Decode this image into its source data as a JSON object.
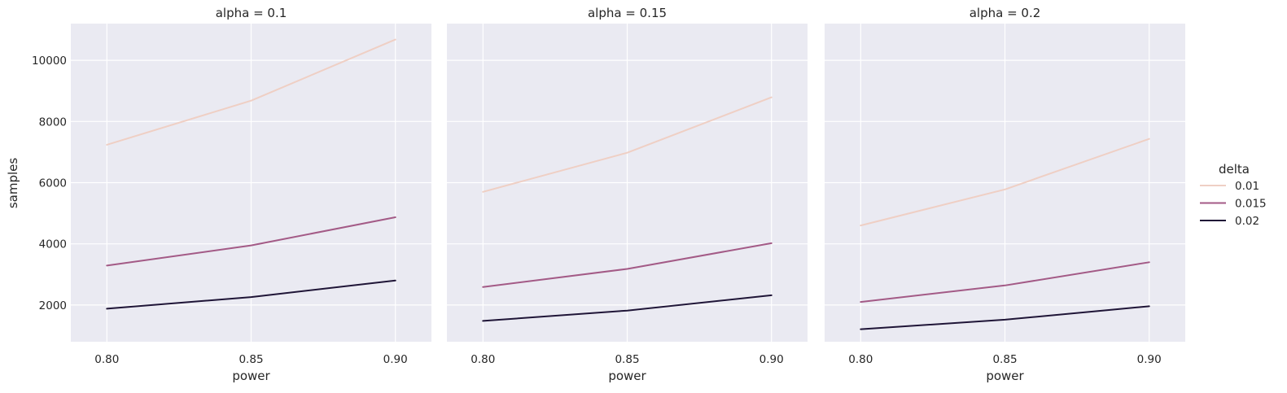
{
  "chart_data": {
    "type": "line",
    "facet_variable": "alpha",
    "facets": [
      {
        "title": "alpha = 0.1",
        "series": [
          {
            "name": "0.01",
            "values": [
              7240,
              8680,
              10680
            ]
          },
          {
            "name": "0.015",
            "values": [
              3290,
              3950,
              4870
            ]
          },
          {
            "name": "0.02",
            "values": [
              1880,
              2260,
              2800
            ]
          }
        ]
      },
      {
        "title": "alpha = 0.15",
        "series": [
          {
            "name": "0.01",
            "values": [
              5700,
              6980,
              8790
            ]
          },
          {
            "name": "0.015",
            "values": [
              2590,
              3180,
              4020
            ]
          },
          {
            "name": "0.02",
            "values": [
              1480,
              1820,
              2320
            ]
          }
        ]
      },
      {
        "title": "alpha = 0.2",
        "series": [
          {
            "name": "0.01",
            "values": [
              4600,
              5780,
              7430
            ]
          },
          {
            "name": "0.015",
            "values": [
              2100,
              2640,
              3400
            ]
          },
          {
            "name": "0.02",
            "values": [
              1210,
              1520,
              1960
            ]
          }
        ]
      }
    ],
    "x": [
      0.8,
      0.85,
      0.9
    ],
    "x_ticks": [
      "0.80",
      "0.85",
      "0.90"
    ],
    "y_ticks": [
      2000,
      4000,
      6000,
      8000,
      10000
    ],
    "ylim": [
      800,
      11200
    ],
    "xlim": [
      0.7875,
      0.9125
    ],
    "xlabel": "power",
    "ylabel": "samples",
    "grid": true,
    "legend": {
      "title": "delta",
      "placement": "right",
      "entries": [
        "0.01",
        "0.015",
        "0.02"
      ]
    },
    "colors": {
      "0.01": "#efcfc4",
      "0.015": "#a35a86",
      "0.02": "#1f1537",
      "panel_bg": "#eaeaf2",
      "grid": "#ffffff"
    }
  }
}
